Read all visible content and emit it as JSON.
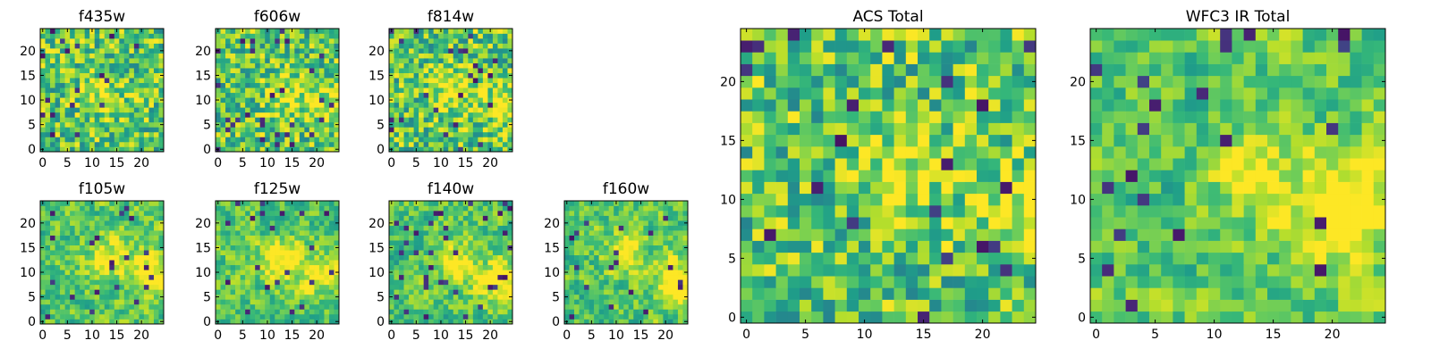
{
  "chart_data": [
    {
      "type": "heatmap",
      "title": "f435w",
      "xlim": [
        -0.5,
        24.5
      ],
      "ylim": [
        -0.5,
        24.5
      ],
      "xticks": [
        0,
        5,
        10,
        15,
        20
      ],
      "yticks": [
        0,
        5,
        10,
        15,
        20
      ],
      "tick_labels_x": [
        "0",
        "5",
        "10",
        "15",
        "20"
      ],
      "tick_labels_y": [
        "0",
        "5",
        "10",
        "15",
        "20"
      ],
      "grid_size": 25,
      "cell_values": "noise field, values 0–1 (viridis), mild bright patch near x≈12,y≈11",
      "colormap": "viridis",
      "seed": 11,
      "blob": [
        [
          12,
          11,
          0.2,
          3
        ]
      ]
    },
    {
      "type": "heatmap",
      "title": "f606w",
      "xlim": [
        -0.5,
        24.5
      ],
      "ylim": [
        -0.5,
        24.5
      ],
      "xticks": [
        0,
        5,
        10,
        15,
        20
      ],
      "yticks": [
        0,
        5,
        10,
        15,
        20
      ],
      "tick_labels_x": [
        "0",
        "5",
        "10",
        "15",
        "20"
      ],
      "tick_labels_y": [
        "0",
        "5",
        "10",
        "15",
        "20"
      ],
      "grid_size": 25,
      "cell_values": "noise field, values 0–1 (viridis), bright patches near x≈14,y≈11 and x≈23,y≈9",
      "colormap": "viridis",
      "seed": 23,
      "blob": [
        [
          14,
          11,
          0.25,
          3
        ],
        [
          23,
          9,
          0.25,
          3
        ]
      ]
    },
    {
      "type": "heatmap",
      "title": "f814w",
      "xlim": [
        -0.5,
        24.5
      ],
      "ylim": [
        -0.5,
        24.5
      ],
      "xticks": [
        0,
        5,
        10,
        15,
        20
      ],
      "yticks": [
        0,
        5,
        10,
        15,
        20
      ],
      "tick_labels_x": [
        "0",
        "5",
        "10",
        "15",
        "20"
      ],
      "tick_labels_y": [
        "0",
        "5",
        "10",
        "15",
        "20"
      ],
      "grid_size": 25,
      "cell_values": "noise field, values 0–1 (viridis), bright patches near x≈13,y≈12 and x≈23,y≈9",
      "colormap": "viridis",
      "seed": 37,
      "blob": [
        [
          13,
          12,
          0.3,
          3
        ],
        [
          23,
          9,
          0.3,
          3
        ]
      ]
    },
    {
      "type": "heatmap",
      "title": "f105w",
      "xlim": [
        -0.5,
        24.5
      ],
      "ylim": [
        -0.5,
        24.5
      ],
      "xticks": [
        0,
        5,
        10,
        15,
        20
      ],
      "yticks": [
        0,
        5,
        10,
        15,
        20
      ],
      "tick_labels_x": [
        "0",
        "5",
        "10",
        "15",
        "20"
      ],
      "tick_labels_y": [
        "0",
        "5",
        "10",
        "15",
        "20"
      ],
      "grid_size": 25,
      "cell_values": "smoothed noise, values 0–1 (viridis), bright patches near x≈13,y≈13 and x≈22,y≈10",
      "colormap": "viridis",
      "seed": 41,
      "blob": [
        [
          13,
          13,
          0.3,
          3
        ],
        [
          22,
          10,
          0.35,
          3
        ]
      ]
    },
    {
      "type": "heatmap",
      "title": "f125w",
      "xlim": [
        -0.5,
        24.5
      ],
      "ylim": [
        -0.5,
        24.5
      ],
      "xticks": [
        0,
        5,
        10,
        15,
        20
      ],
      "yticks": [
        0,
        5,
        10,
        15,
        20
      ],
      "tick_labels_x": [
        "0",
        "5",
        "10",
        "15",
        "20"
      ],
      "tick_labels_y": [
        "0",
        "5",
        "10",
        "15",
        "20"
      ],
      "grid_size": 25,
      "cell_values": "smoothed noise, values 0–1 (viridis), bright patches near x≈13,y≈12 and x≈22,y≈10",
      "colormap": "viridis",
      "seed": 53,
      "blob": [
        [
          13,
          12,
          0.35,
          3
        ],
        [
          22,
          10,
          0.35,
          3
        ]
      ]
    },
    {
      "type": "heatmap",
      "title": "f140w",
      "xlim": [
        -0.5,
        24.5
      ],
      "ylim": [
        -0.5,
        24.5
      ],
      "xticks": [
        0,
        5,
        10,
        15,
        20
      ],
      "yticks": [
        0,
        5,
        10,
        15,
        20
      ],
      "tick_labels_x": [
        "0",
        "5",
        "10",
        "15",
        "20"
      ],
      "tick_labels_y": [
        "0",
        "5",
        "10",
        "15",
        "20"
      ],
      "grid_size": 25,
      "cell_values": "smoothed noise, values 0–1 (viridis), bright patches near x≈13,y≈12 and x≈22,y≈8",
      "colormap": "viridis",
      "seed": 67,
      "blob": [
        [
          13,
          12,
          0.3,
          3
        ],
        [
          22,
          8,
          0.4,
          3
        ]
      ]
    },
    {
      "type": "heatmap",
      "title": "f160w",
      "xlim": [
        -0.5,
        24.5
      ],
      "ylim": [
        -0.5,
        24.5
      ],
      "xticks": [
        0,
        5,
        10,
        15,
        20
      ],
      "yticks": [
        0,
        5,
        10,
        15,
        20
      ],
      "tick_labels_x": [
        "0",
        "5",
        "10",
        "15",
        "20"
      ],
      "tick_labels_y": [
        "0",
        "5",
        "10",
        "15",
        "20"
      ],
      "grid_size": 25,
      "cell_values": "smoothed noise, values 0–1 (viridis), bright patches near x≈12,y≈14 and x≈22,y≈8",
      "colormap": "viridis",
      "seed": 79,
      "blob": [
        [
          12,
          14,
          0.3,
          3
        ],
        [
          22,
          8,
          0.4,
          3
        ]
      ]
    },
    {
      "type": "heatmap",
      "title": "ACS Total",
      "xlim": [
        -0.5,
        24.5
      ],
      "ylim": [
        -0.5,
        24.5
      ],
      "xticks": [
        0,
        5,
        10,
        15,
        20
      ],
      "yticks": [
        0,
        5,
        10,
        15,
        20
      ],
      "tick_labels_x": [
        "0",
        "5",
        "10",
        "15",
        "20"
      ],
      "tick_labels_y": [
        "0",
        "5",
        "10",
        "15",
        "20"
      ],
      "grid_size": 25,
      "cell_values": "values 0–1 (viridis), mostly green, bright patches near x≈13,y≈12 and x≈23,y≈9",
      "colormap": "viridis",
      "seed": 91,
      "blob": [
        [
          13,
          12,
          0.3,
          2.5
        ],
        [
          23,
          9,
          0.3,
          2.5
        ]
      ]
    },
    {
      "type": "heatmap",
      "title": "WFC3 IR Total",
      "xlim": [
        -0.5,
        24.5
      ],
      "ylim": [
        -0.5,
        24.5
      ],
      "xticks": [
        0,
        5,
        10,
        15,
        20
      ],
      "yticks": [
        0,
        5,
        10,
        15,
        20
      ],
      "tick_labels_x": [
        "0",
        "5",
        "10",
        "15",
        "20"
      ],
      "tick_labels_y": [
        "0",
        "5",
        "10",
        "15",
        "20"
      ],
      "grid_size": 25,
      "cell_values": "smoothed field, values 0–1 (viridis), bright source near x≈21,y≈9 and secondary near x≈13,y≈12",
      "colormap": "viridis",
      "seed": 103,
      "blob": [
        [
          13,
          12,
          0.3,
          2.5
        ],
        [
          21,
          9,
          0.45,
          3
        ]
      ]
    }
  ]
}
